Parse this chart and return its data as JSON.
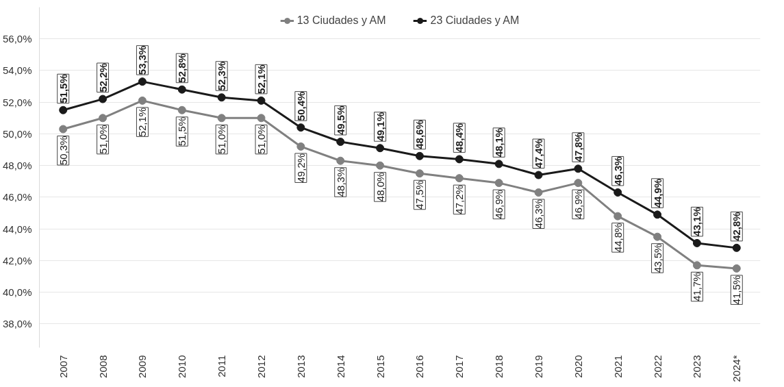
{
  "chart_data": {
    "type": "line",
    "categories": [
      "2007",
      "2008",
      "2009",
      "2010",
      "2011",
      "2012",
      "2013",
      "2014",
      "2015",
      "2016",
      "2017",
      "2018",
      "2019",
      "2020",
      "2021",
      "2022",
      "2023",
      "2024*"
    ],
    "series": [
      {
        "name": "13 Ciudades y AM",
        "color": "#808080",
        "values": [
          50.3,
          51.0,
          52.1,
          51.5,
          51.0,
          51.0,
          49.2,
          48.3,
          48.0,
          47.5,
          47.2,
          46.9,
          46.3,
          46.9,
          44.8,
          43.5,
          41.7,
          41.5
        ],
        "value_labels": [
          "50,3%",
          "51,0%",
          "52,1%",
          "51,5%",
          "51,0%",
          "51,0%",
          "49,2%",
          "48,3%",
          "48,0%",
          "47,5%",
          "47,2%",
          "46,9%",
          "46,3%",
          "46,9%",
          "44,8%",
          "43,5%",
          "41,7%",
          "41,5%"
        ]
      },
      {
        "name": "23 Ciudades y AM",
        "color": "#1a1a1a",
        "values": [
          51.5,
          52.2,
          53.3,
          52.8,
          52.3,
          52.1,
          50.4,
          49.5,
          49.1,
          48.6,
          48.4,
          48.1,
          47.4,
          47.8,
          46.3,
          44.9,
          43.1,
          42.8
        ],
        "value_labels": [
          "51,5%",
          "52,2%",
          "53,3%",
          "52,8%",
          "52,3%",
          "52,1%",
          "50,4%",
          "49,5%",
          "49,1%",
          "48,6%",
          "48,4%",
          "48,1%",
          "47,4%",
          "47,8%",
          "46,3%",
          "44,9%",
          "43,1%",
          "42,8%"
        ]
      }
    ],
    "ylim": [
      36.5,
      58
    ],
    "yticks": [
      {
        "value": 38,
        "label": "38,0%"
      },
      {
        "value": 40,
        "label": "40,0%"
      },
      {
        "value": 42,
        "label": "42,0%"
      },
      {
        "value": 44,
        "label": "44,0%"
      },
      {
        "value": 46,
        "label": "46,0%"
      },
      {
        "value": 48,
        "label": "48,0%"
      },
      {
        "value": 50,
        "label": "50,0%"
      },
      {
        "value": 52,
        "label": "52,0%"
      },
      {
        "value": 54,
        "label": "54,0%"
      },
      {
        "value": 56,
        "label": "56,0%"
      }
    ],
    "grid": "y",
    "legend": "top",
    "marker": "circle",
    "line_style": "solid"
  }
}
